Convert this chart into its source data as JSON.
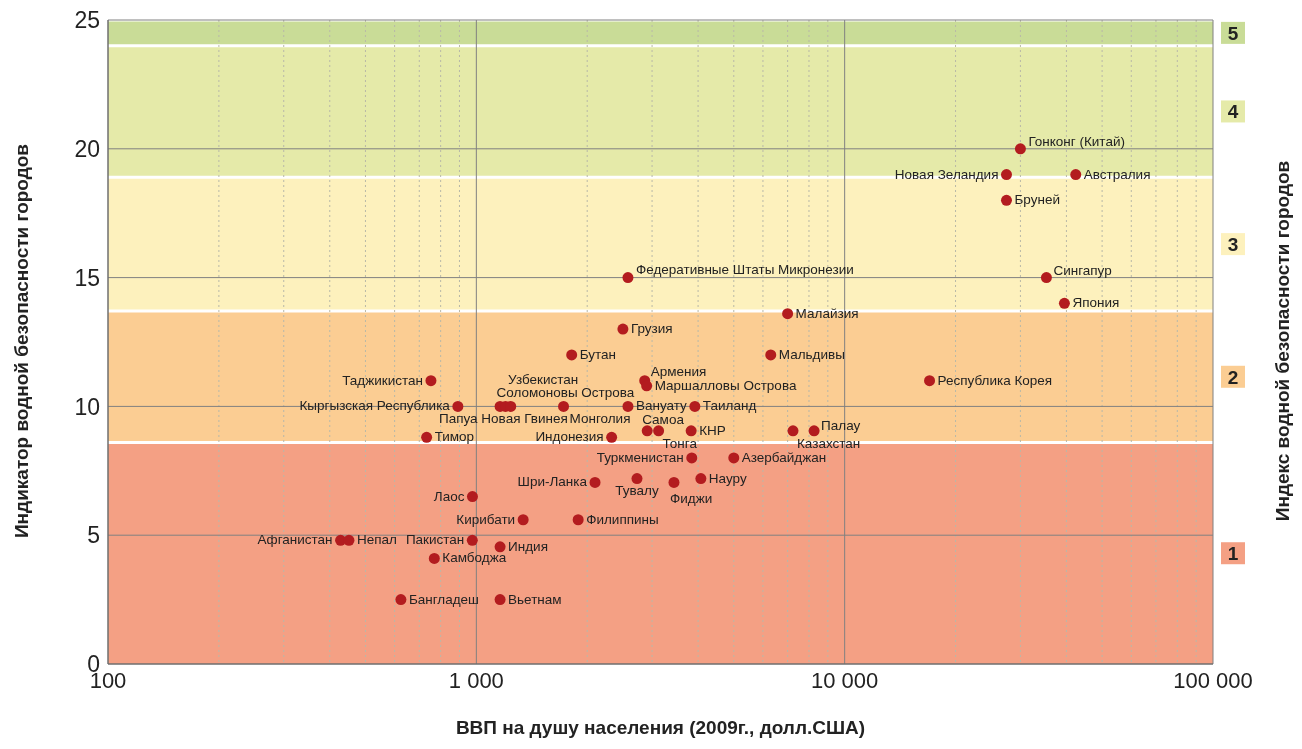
{
  "chart_data": {
    "type": "scatter",
    "xlabel": "ВВП на душу населения (2009г., долл.США)",
    "ylabel": "Индикатор водной безопасности городов",
    "y2label": "Индекс водной безопасности городов",
    "log": "x",
    "grid": true,
    "marker": "circle",
    "color": "#b31c1f",
    "xlim": [
      100,
      100000
    ],
    "xticks": [
      {
        "value": 100,
        "label": "100"
      },
      {
        "value": 200,
        "label": null
      },
      {
        "value": 300,
        "label": null
      },
      {
        "value": 400,
        "label": null
      },
      {
        "value": 500,
        "label": null
      },
      {
        "value": 600,
        "label": null
      },
      {
        "value": 700,
        "label": null
      },
      {
        "value": 800,
        "label": null
      },
      {
        "value": 900,
        "label": null
      },
      {
        "value": 1000,
        "label": "1 000"
      },
      {
        "value": 2000,
        "label": null
      },
      {
        "value": 3000,
        "label": null
      },
      {
        "value": 4000,
        "label": null
      },
      {
        "value": 5000,
        "label": null
      },
      {
        "value": 6000,
        "label": null
      },
      {
        "value": 7000,
        "label": null
      },
      {
        "value": 8000,
        "label": null
      },
      {
        "value": 9000,
        "label": null
      },
      {
        "value": 10000,
        "label": "10 000"
      },
      {
        "value": 20000,
        "label": null
      },
      {
        "value": 30000,
        "label": null
      },
      {
        "value": 40000,
        "label": null
      },
      {
        "value": 50000,
        "label": null
      },
      {
        "value": 60000,
        "label": null
      },
      {
        "value": 70000,
        "label": null
      },
      {
        "value": 80000,
        "label": null
      },
      {
        "value": 90000,
        "label": null
      },
      {
        "value": 100000,
        "label": "100 000"
      }
    ],
    "ylim": [
      0,
      25
    ],
    "yticks": [
      0,
      5,
      10,
      15,
      20,
      25
    ],
    "x": [
      30000,
      27500,
      42400,
      27500,
      35300,
      39500,
      17000,
      2580,
      7000,
      2500,
      1815,
      6300,
      2865,
      2900,
      753,
      891,
      1160,
      1200,
      1240,
      1725,
      2580,
      3920,
      733,
      2330,
      2910,
      3125,
      3830,
      7240,
      8260,
      3845,
      5000,
      4070,
      3440,
      2730,
      2100,
      976,
      1340,
      1890,
      428,
      451,
      975,
      1160,
      769,
      624,
      1160
    ],
    "values": [
      20,
      19,
      19,
      18,
      15,
      14,
      11,
      15,
      13.6,
      13,
      12,
      12,
      11,
      10.8,
      11,
      10,
      10,
      10,
      10,
      10,
      10,
      10,
      8.8,
      8.8,
      9.05,
      9.05,
      9.05,
      9.05,
      9.05,
      8,
      8,
      7.2,
      7.05,
      7.2,
      7.05,
      6.5,
      5.6,
      5.6,
      4.8,
      4.8,
      4.8,
      4.55,
      4.1,
      2.5,
      2.5
    ],
    "bands": [
      {
        "axis": "y",
        "from": 0,
        "to": 8.6,
        "label": "1",
        "color": "#f4a084"
      },
      {
        "axis": "y",
        "from": 8.6,
        "to": 13.7,
        "label": "2",
        "color": "#fbcd93"
      },
      {
        "axis": "y",
        "from": 13.7,
        "to": 18.9,
        "label": "3",
        "color": "#fdf1bd"
      },
      {
        "axis": "y",
        "from": 18.9,
        "to": 24,
        "label": "4",
        "color": "#e5eaa9"
      },
      {
        "axis": "y",
        "from": 24,
        "to": 25,
        "label": "5",
        "color": "#c9dc97"
      }
    ],
    "annotations": [
      {
        "text": "Гонконг (Китай)",
        "x": 30000,
        "y": 20
      },
      {
        "text": "Новая Зеландия",
        "x": 27500,
        "y": 19
      },
      {
        "text": "Австралия",
        "x": 42400,
        "y": 19
      },
      {
        "text": "Бруней",
        "x": 27500,
        "y": 18
      },
      {
        "text": "Сингапур",
        "x": 35300,
        "y": 15
      },
      {
        "text": "Япония",
        "x": 39500,
        "y": 14
      },
      {
        "text": "Республика Корея",
        "x": 17000,
        "y": 11
      },
      {
        "text": "Федеративные Штаты Микронезии",
        "x": 2580,
        "y": 15
      },
      {
        "text": "Малайзия",
        "x": 7000,
        "y": 13.6
      },
      {
        "text": "Грузия",
        "x": 2500,
        "y": 13
      },
      {
        "text": "Бутан",
        "x": 1815,
        "y": 12
      },
      {
        "text": "Мальдивы",
        "x": 6300,
        "y": 12
      },
      {
        "text": "Армения",
        "x": 2865,
        "y": 11
      },
      {
        "text": "Маршалловы Острова",
        "x": 2900,
        "y": 10.8
      },
      {
        "text": "Таджикистан",
        "x": 753,
        "y": 11
      },
      {
        "text": "Кыргызская Республика",
        "x": 891,
        "y": 10
      },
      {
        "text": "Узбекистан",
        "x": 1160,
        "y": 10
      },
      {
        "text": "Соломоновы Острова",
        "x": 1200,
        "y": 10
      },
      {
        "text": "Папуа Новая Гвинея",
        "x": 1240,
        "y": 10
      },
      {
        "text": "Монголия",
        "x": 1725,
        "y": 10
      },
      {
        "text": "Вануату",
        "x": 2580,
        "y": 10
      },
      {
        "text": "Таиланд",
        "x": 3920,
        "y": 10
      },
      {
        "text": "Тимор",
        "x": 733,
        "y": 8.8
      },
      {
        "text": "Индонезия",
        "x": 2330,
        "y": 8.8
      },
      {
        "text": "Самоа",
        "x": 2910,
        "y": 9.05
      },
      {
        "text": "Тонга",
        "x": 3125,
        "y": 9.05
      },
      {
        "text": "КНР",
        "x": 3830,
        "y": 9.05
      },
      {
        "text": "Казахстан",
        "x": 7240,
        "y": 9.05
      },
      {
        "text": "Палау",
        "x": 8260,
        "y": 9.05
      },
      {
        "text": "Туркменистан",
        "x": 3845,
        "y": 8
      },
      {
        "text": "Азербайджан",
        "x": 5000,
        "y": 8
      },
      {
        "text": "Науру",
        "x": 4070,
        "y": 7.2
      },
      {
        "text": "Фиджи",
        "x": 3440,
        "y": 7.05
      },
      {
        "text": "Тувалу",
        "x": 2730,
        "y": 7.2
      },
      {
        "text": "Шри-Ланка",
        "x": 2100,
        "y": 7.05
      },
      {
        "text": "Лаос",
        "x": 976,
        "y": 6.5
      },
      {
        "text": "Кирибати",
        "x": 1340,
        "y": 5.6
      },
      {
        "text": "Филиппины",
        "x": 1890,
        "y": 5.6
      },
      {
        "text": "Афганистан",
        "x": 428,
        "y": 4.8
      },
      {
        "text": "Непал",
        "x": 451,
        "y": 4.8
      },
      {
        "text": "Пакистан",
        "x": 975,
        "y": 4.8
      },
      {
        "text": "Индия",
        "x": 1160,
        "y": 4.55
      },
      {
        "text": "Камбоджа",
        "x": 769,
        "y": 4.1
      },
      {
        "text": "Бангладеш",
        "x": 624,
        "y": 2.5
      },
      {
        "text": "Вьетнам",
        "x": 1160,
        "y": 2.5
      }
    ]
  }
}
